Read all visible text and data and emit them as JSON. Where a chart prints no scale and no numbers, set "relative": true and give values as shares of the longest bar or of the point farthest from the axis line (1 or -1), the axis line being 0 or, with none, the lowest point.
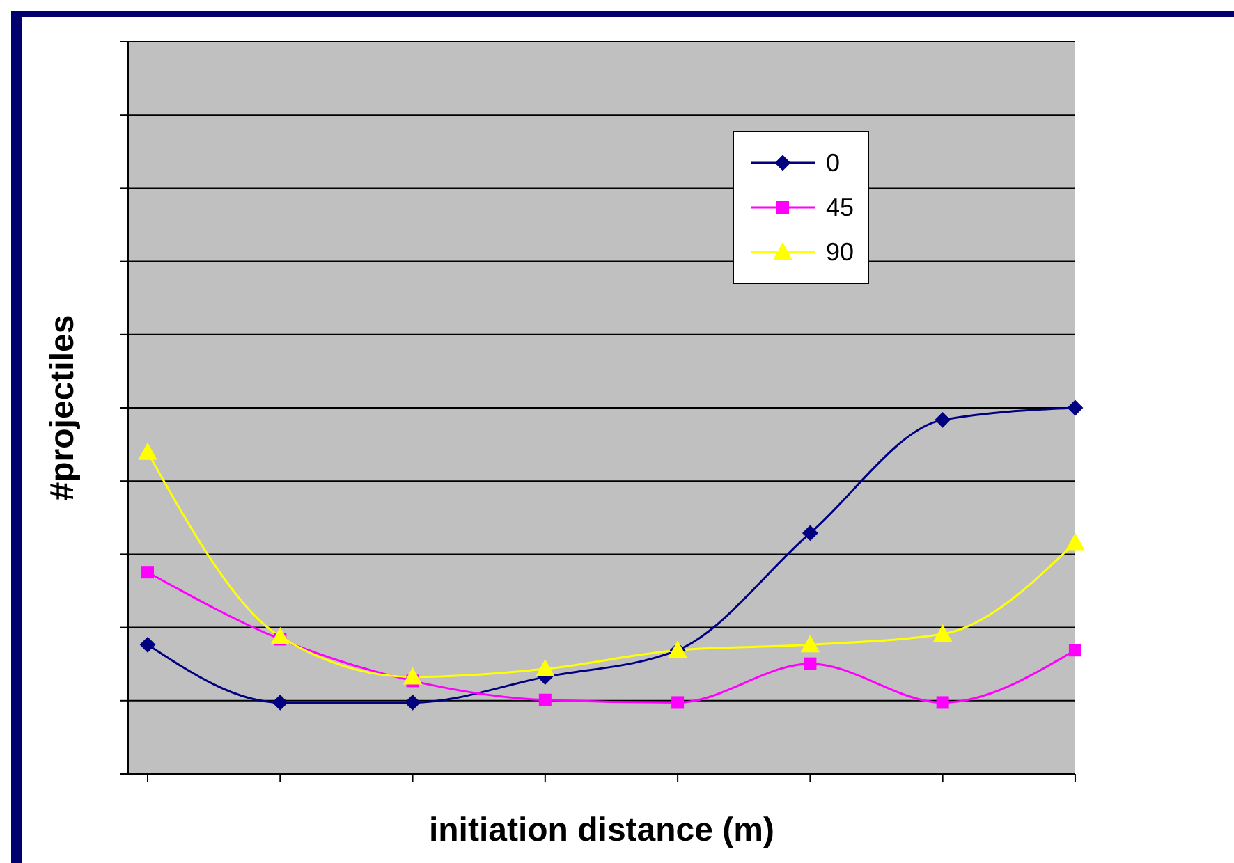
{
  "chart_data": {
    "type": "line",
    "relative": true,
    "xlabel": "initiation distance (m)",
    "ylabel": "#projectiles",
    "categories": [
      null,
      null,
      null,
      null,
      null,
      null,
      null,
      null
    ],
    "grid": "y",
    "legend": "top right",
    "series": [
      {
        "name": "0",
        "color": "#000080",
        "marker": "diamond",
        "values": [
          0.353,
          0.195,
          0.195,
          0.265,
          0.338,
          0.658,
          0.967,
          1
        ]
      },
      {
        "name": "45",
        "color": "#ff00ff",
        "marker": "square",
        "values": [
          0.551,
          0.368,
          0.254,
          0.202,
          0.195,
          0.301,
          0.195,
          0.338
        ]
      },
      {
        "name": "90",
        "color": "#ffff00",
        "marker": "triangle",
        "values": [
          0.879,
          0.375,
          0.265,
          0.287,
          0.338,
          0.353,
          0.382,
          0.632
        ]
      }
    ]
  }
}
